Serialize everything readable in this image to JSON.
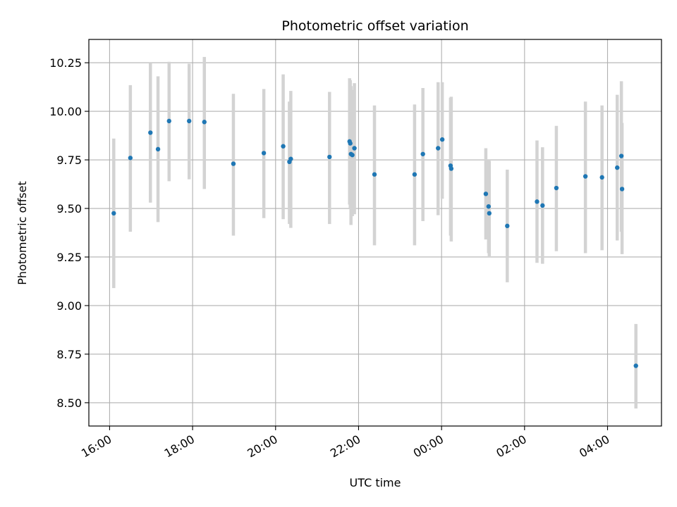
{
  "chart_data": {
    "type": "scatter",
    "title": "Photometric offset variation",
    "xlabel": "UTC time",
    "ylabel": "Photometric offset",
    "x_ticks": [
      "16:00",
      "18:00",
      "20:00",
      "22:00",
      "00:00",
      "02:00",
      "04:00"
    ],
    "x_tick_hours": [
      16,
      18,
      20,
      22,
      24,
      26,
      28
    ],
    "xlim_hours": [
      15.5,
      29.3
    ],
    "y_ticks": [
      "8.50",
      "8.75",
      "9.00",
      "9.25",
      "9.50",
      "9.75",
      "10.00",
      "10.25"
    ],
    "y_tick_values": [
      8.5,
      8.75,
      9.0,
      9.25,
      9.5,
      9.75,
      10.0,
      10.25
    ],
    "ylim": [
      8.38,
      10.37
    ],
    "grid": true,
    "colors": {
      "point": "#1f77b4",
      "errorbar": "#d3d3d3",
      "grid": "#b0b0b0",
      "axes": "#000000"
    },
    "points": [
      {
        "t": "16:06",
        "y": 9.475,
        "lo": 9.09,
        "hi": 9.86
      },
      {
        "t": "16:30",
        "y": 9.76,
        "lo": 9.38,
        "hi": 10.135
      },
      {
        "t": "16:59",
        "y": 9.89,
        "lo": 9.53,
        "hi": 10.25
      },
      {
        "t": "17:10",
        "y": 9.805,
        "lo": 9.43,
        "hi": 10.18
      },
      {
        "t": "17:26",
        "y": 9.95,
        "lo": 9.64,
        "hi": 10.255
      },
      {
        "t": "17:55",
        "y": 9.95,
        "lo": 9.65,
        "hi": 10.245
      },
      {
        "t": "18:17",
        "y": 9.945,
        "lo": 9.6,
        "hi": 10.28
      },
      {
        "t": "18:59",
        "y": 9.73,
        "lo": 9.36,
        "hi": 10.09
      },
      {
        "t": "19:43",
        "y": 9.785,
        "lo": 9.45,
        "hi": 10.115
      },
      {
        "t": "20:11",
        "y": 9.82,
        "lo": 9.445,
        "hi": 10.19
      },
      {
        "t": "20:20",
        "y": 9.74,
        "lo": 9.42,
        "hi": 10.05
      },
      {
        "t": "20:22",
        "y": 9.755,
        "lo": 9.4,
        "hi": 10.105
      },
      {
        "t": "21:18",
        "y": 9.765,
        "lo": 9.42,
        "hi": 10.1
      },
      {
        "t": "21:47",
        "y": 9.845,
        "lo": 9.52,
        "hi": 10.17
      },
      {
        "t": "21:48",
        "y": 9.835,
        "lo": 9.5,
        "hi": 10.16
      },
      {
        "t": "21:49",
        "y": 9.78,
        "lo": 9.415,
        "hi": 10.13
      },
      {
        "t": "21:51",
        "y": 9.775,
        "lo": 9.46,
        "hi": 10.11
      },
      {
        "t": "21:54",
        "y": 9.81,
        "lo": 9.47,
        "hi": 10.145
      },
      {
        "t": "22:23",
        "y": 9.675,
        "lo": 9.31,
        "hi": 10.03
      },
      {
        "t": "23:21",
        "y": 9.675,
        "lo": 9.31,
        "hi": 10.035
      },
      {
        "t": "23:33",
        "y": 9.78,
        "lo": 9.435,
        "hi": 10.12
      },
      {
        "t": "23:55",
        "y": 9.81,
        "lo": 9.465,
        "hi": 10.15
      },
      {
        "t": "00:01",
        "y": 9.855,
        "lo": 9.55,
        "hi": 10.15
      },
      {
        "t": "00:13",
        "y": 9.72,
        "lo": 9.36,
        "hi": 10.07
      },
      {
        "t": "00:14",
        "y": 9.705,
        "lo": 9.33,
        "hi": 10.075
      },
      {
        "t": "01:04",
        "y": 9.575,
        "lo": 9.34,
        "hi": 9.81
      },
      {
        "t": "01:08",
        "y": 9.51,
        "lo": 9.27,
        "hi": 9.75
      },
      {
        "t": "01:09",
        "y": 9.475,
        "lo": 9.25,
        "hi": 9.745
      },
      {
        "t": "01:35",
        "y": 9.41,
        "lo": 9.12,
        "hi": 9.7
      },
      {
        "t": "02:18",
        "y": 9.535,
        "lo": 9.22,
        "hi": 9.85
      },
      {
        "t": "02:26",
        "y": 9.515,
        "lo": 9.215,
        "hi": 9.815
      },
      {
        "t": "02:46",
        "y": 9.605,
        "lo": 9.28,
        "hi": 9.925
      },
      {
        "t": "03:28",
        "y": 9.665,
        "lo": 9.27,
        "hi": 10.05
      },
      {
        "t": "03:52",
        "y": 9.66,
        "lo": 9.285,
        "hi": 10.03
      },
      {
        "t": "04:14",
        "y": 9.71,
        "lo": 9.335,
        "hi": 10.085
      },
      {
        "t": "04:20",
        "y": 9.77,
        "lo": 9.38,
        "hi": 10.155
      },
      {
        "t": "04:21",
        "y": 9.6,
        "lo": 9.265,
        "hi": 9.94
      },
      {
        "t": "04:41",
        "y": 8.69,
        "lo": 8.47,
        "hi": 8.905
      }
    ]
  }
}
